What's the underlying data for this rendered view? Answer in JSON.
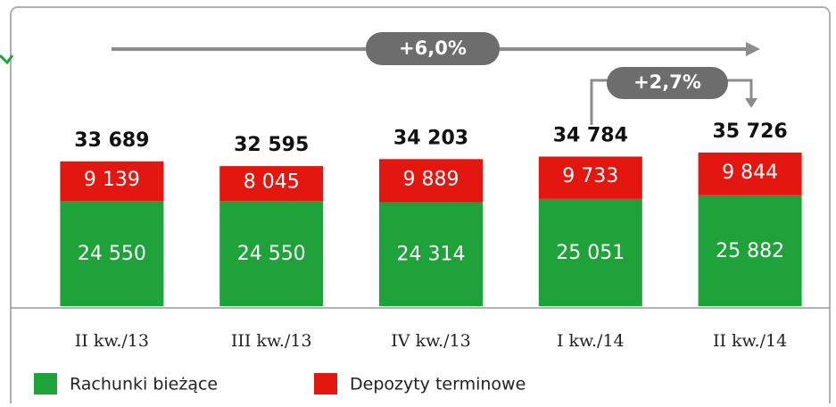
{
  "chart_data": {
    "type": "stacked_bar",
    "categories": [
      "II kw./13",
      "III kw./13",
      "IV kw./13",
      "I kw./14",
      "II kw./14"
    ],
    "series": [
      {
        "name": "Rachunki bieżące",
        "color": "#1fa23a",
        "values": [
          24550,
          24550,
          24314,
          25051,
          25882
        ],
        "value_labels": [
          "24 550",
          "24 550",
          "24 314",
          "25 051",
          "25 882"
        ]
      },
      {
        "name": "Depozyty terminowe",
        "color": "#e3170f",
        "values": [
          9139,
          8045,
          9889,
          9733,
          9844
        ],
        "value_labels": [
          "9 139",
          "8 045",
          "9 889",
          "9 733",
          "9 844"
        ]
      }
    ],
    "totals": [
      33689,
      32595,
      34203,
      34784,
      35726
    ],
    "total_labels": [
      "33 689",
      "32 595",
      "34 203",
      "34 784",
      "35 726"
    ],
    "annotations": [
      "+6,0%",
      "+2,7%"
    ],
    "ylim": [
      0,
      40000
    ]
  }
}
